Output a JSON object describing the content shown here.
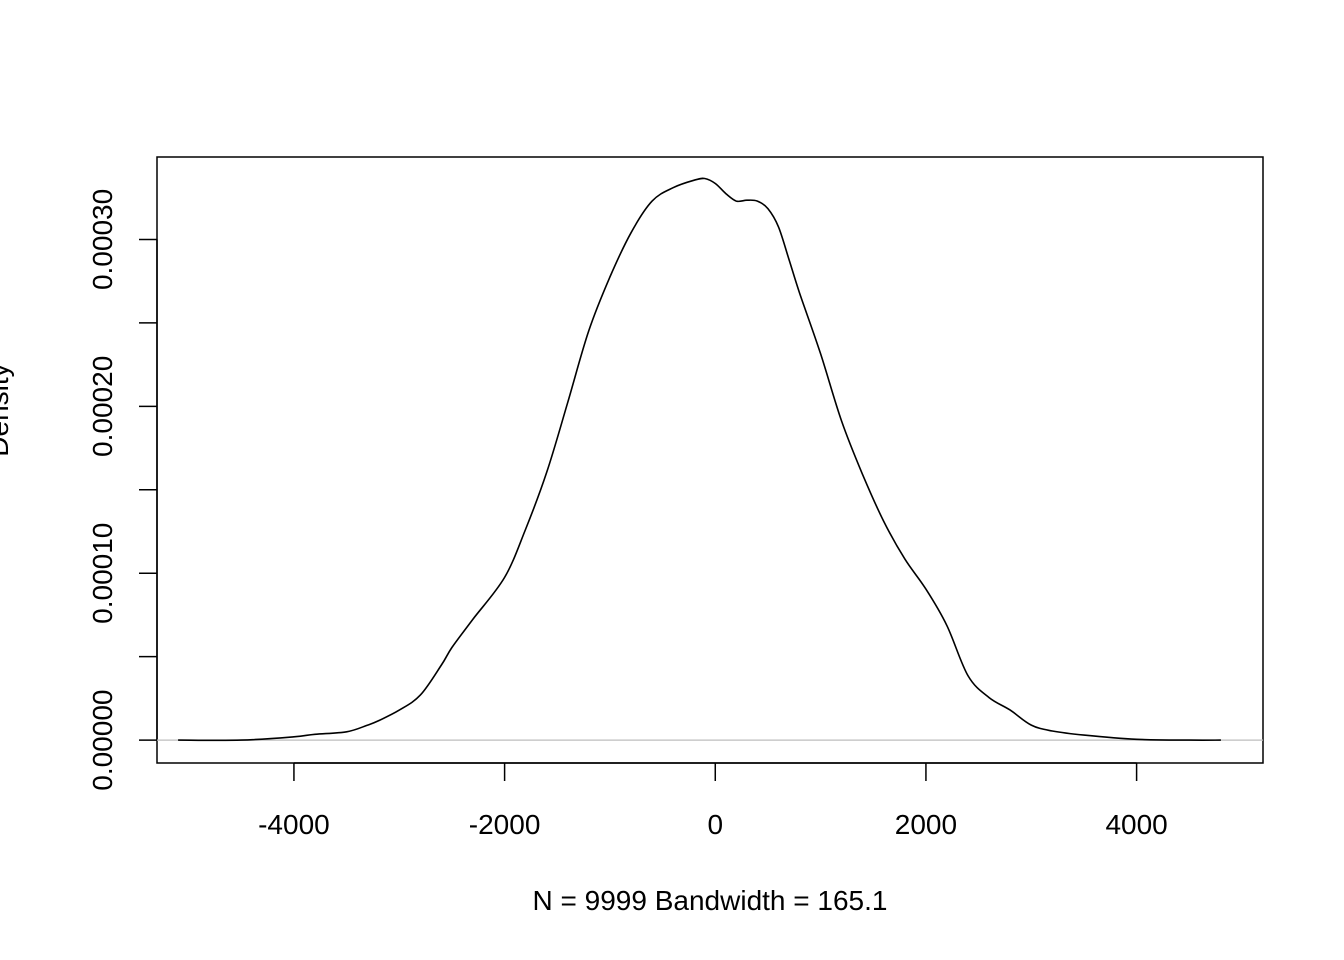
{
  "chart_data": {
    "type": "line",
    "title": "",
    "xlabel": "N = 9999   Bandwidth = 165.1",
    "ylabel": "Density",
    "xlim": [
      -5300,
      5200
    ],
    "ylim": [
      -1.37e-05,
      0.0003494
    ],
    "x_ticks": [
      -4000,
      -2000,
      0,
      2000,
      4000
    ],
    "x_tick_labels": [
      "-4000",
      "-2000",
      "0",
      "2000",
      "4000"
    ],
    "y_ticks": [
      0,
      5e-05,
      0.0001,
      0.00015,
      0.0002,
      0.00025,
      0.0003
    ],
    "y_tick_labels": [
      "0.00000",
      "",
      "0.00010",
      "",
      "0.00020",
      "",
      "0.00030"
    ],
    "baseline": 0,
    "baseline_color": "#bebebe",
    "line_color": "#000000",
    "grid": false,
    "legend": "none",
    "series": [
      {
        "x": [
          -5100,
          -4500,
          -4000,
          -3800,
          -3500,
          -3300,
          -3200,
          -3000,
          -2800,
          -2600,
          -2500,
          -2300,
          -2000,
          -1800,
          -1600,
          -1400,
          -1200,
          -1000,
          -800,
          -600,
          -400,
          -200,
          -100,
          0,
          100,
          200,
          300,
          400,
          500,
          600,
          700,
          800,
          1000,
          1200,
          1400,
          1600,
          1800,
          2000,
          2200,
          2400,
          2600,
          2800,
          3000,
          3200,
          3500,
          4000,
          4500,
          4800
        ],
        "y": [
          0,
          0,
          2e-06,
          3.5e-06,
          5e-06,
          9e-06,
          1.15e-05,
          1.8e-05,
          2.7e-05,
          4.5e-05,
          5.55e-05,
          7.25e-05,
          9.75e-05,
          0.0001265,
          0.0001605,
          0.0002025,
          0.0002455,
          0.0002775,
          0.000304,
          0.000323,
          0.000331,
          0.0003355,
          0.0003365,
          0.0003335,
          0.0003275,
          0.000323,
          0.0003235,
          0.000323,
          0.0003185,
          0.0003075,
          0.000288,
          0.000268,
          0.0002315,
          0.000191,
          0.000159,
          0.000131,
          0.0001085,
          9.05e-05,
          6.85e-05,
          3.85e-05,
          2.55e-05,
          1.8e-05,
          9e-06,
          5.5e-06,
          3e-06,
          5e-07,
          0,
          0
        ]
      }
    ]
  }
}
